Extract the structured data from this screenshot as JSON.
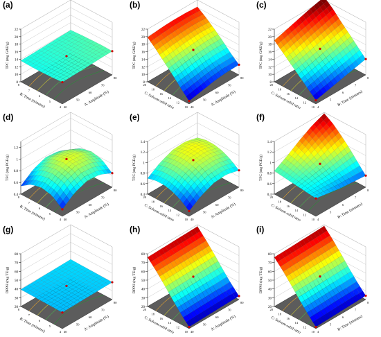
{
  "chart_data": [
    {
      "panel": "(a)",
      "type": "surface",
      "zlabel": "TPC (mg GAE/g)",
      "xlabel": "A: Amplitude (%)",
      "ylabel": "B: Time (minutes)",
      "xticks": [
        "40",
        "50",
        "60",
        "70",
        "80"
      ],
      "yticks": [
        "4",
        "5",
        "6",
        "7",
        "8"
      ],
      "zticks": [
        "8",
        "10",
        "12",
        "14",
        "16",
        "18",
        "20",
        "22"
      ],
      "zlim": [
        8,
        22
      ],
      "corners": {
        "front": 13.8,
        "right": 13.6,
        "back": 14.3,
        "left": 13.2
      },
      "surface_z": [
        [
          13.8,
          13.9,
          14.0,
          14.2,
          14.3
        ],
        [
          13.6,
          13.8,
          14.0,
          14.2,
          14.4
        ],
        [
          13.5,
          13.7,
          13.9,
          14.1,
          14.3
        ],
        [
          13.5,
          13.7,
          13.9,
          14.0,
          14.2
        ],
        [
          13.6,
          13.7,
          13.8,
          13.9,
          14.0
        ]
      ]
    },
    {
      "panel": "(b)",
      "type": "surface",
      "zlabel": "TPC (mg GAE/g)",
      "xlabel": "A: Amplitude (%)",
      "ylabel": "C: Solvent-solid ratio",
      "xticks": [
        "40",
        "50",
        "60",
        "70",
        "80"
      ],
      "yticks": [
        "10",
        "12",
        "14",
        "16",
        "18",
        "20"
      ],
      "zticks": [
        "8",
        "10",
        "12",
        "14",
        "16",
        "18",
        "20",
        "22"
      ],
      "zlim": [
        8,
        22
      ],
      "surface_z": [
        [
          8.8,
          9.5,
          10.2,
          10.6,
          10.7
        ],
        [
          11.0,
          11.6,
          12.2,
          12.6,
          12.6
        ],
        [
          13.4,
          14.0,
          14.5,
          14.8,
          14.8
        ],
        [
          15.6,
          16.2,
          16.6,
          16.9,
          16.8
        ],
        [
          17.8,
          18.3,
          18.6,
          18.8,
          18.6
        ],
        [
          19.8,
          20.2,
          20.4,
          20.4,
          20.2
        ]
      ]
    },
    {
      "panel": "(c)",
      "type": "surface",
      "zlabel": "TPC (mg GAE/g)",
      "xlabel": "B: Time (minutes)",
      "ylabel": "C: Solvent-solid ratio",
      "xticks": [
        "4",
        "5",
        "6",
        "7",
        "8"
      ],
      "yticks": [
        "10",
        "12",
        "14",
        "16",
        "18",
        "20"
      ],
      "zticks": [
        "8",
        "10",
        "12",
        "14",
        "16",
        "18",
        "20",
        "22"
      ],
      "zlim": [
        8,
        22
      ],
      "surface_z": [
        [
          9.0,
          9.8,
          10.6,
          11.4,
          12.2
        ],
        [
          11.0,
          11.9,
          12.8,
          13.6,
          14.4
        ],
        [
          13.0,
          13.9,
          14.8,
          15.7,
          16.6
        ],
        [
          15.0,
          15.9,
          16.9,
          17.8,
          18.7
        ],
        [
          17.0,
          18.0,
          19.0,
          20.0,
          21.0
        ],
        [
          19.0,
          20.0,
          21.0,
          22.0,
          22.8
        ]
      ]
    },
    {
      "panel": "(d)",
      "type": "surface",
      "zlabel": "TFC (mg PGE/g)",
      "xlabel": "A: Amplitude (%)",
      "ylabel": "B: Time (minutes)",
      "xticks": [
        "40",
        "50",
        "60",
        "70",
        "80"
      ],
      "yticks": [
        "4",
        "5",
        "6",
        "7",
        "8"
      ],
      "zticks": [
        "0.4",
        "0.6",
        "0.8",
        "1",
        "1.2"
      ],
      "zlim": [
        0.4,
        1.3
      ],
      "surface_z": [
        [
          0.52,
          0.68,
          0.76,
          0.74,
          0.64
        ],
        [
          0.66,
          0.82,
          0.9,
          0.88,
          0.78
        ],
        [
          0.7,
          0.86,
          0.94,
          0.92,
          0.82
        ],
        [
          0.66,
          0.82,
          0.9,
          0.88,
          0.78
        ],
        [
          0.54,
          0.7,
          0.78,
          0.76,
          0.66
        ]
      ]
    },
    {
      "panel": "(e)",
      "type": "surface",
      "zlabel": "TFC (mg PGE/g)",
      "xlabel": "A: Amplitude (%)",
      "ylabel": "C: Solvent-solid ratio",
      "xticks": [
        "40",
        "50",
        "60",
        "70",
        "80"
      ],
      "yticks": [
        "10",
        "12",
        "14",
        "16",
        "18",
        "20"
      ],
      "zticks": [
        "0.4",
        "0.6",
        "0.8",
        "1",
        "1.2",
        "1.4"
      ],
      "zlim": [
        0.4,
        1.4
      ],
      "surface_z": [
        [
          0.5,
          0.66,
          0.76,
          0.78,
          0.72
        ],
        [
          0.62,
          0.78,
          0.88,
          0.9,
          0.84
        ],
        [
          0.7,
          0.86,
          0.96,
          0.98,
          0.92
        ],
        [
          0.74,
          0.9,
          1.0,
          1.02,
          0.96
        ],
        [
          0.74,
          0.9,
          1.0,
          1.02,
          0.96
        ],
        [
          0.7,
          0.86,
          0.96,
          0.98,
          0.92
        ]
      ]
    },
    {
      "panel": "(f)",
      "type": "surface",
      "zlabel": "TFC (mg PGE/g)",
      "xlabel": "B: Time (minutes)",
      "ylabel": "C: Solvent-solid ratio",
      "xticks": [
        "4",
        "5",
        "6",
        "7",
        "8"
      ],
      "yticks": [
        "10",
        "12",
        "14",
        "16",
        "18",
        "20"
      ],
      "zticks": [
        "0.4",
        "0.6",
        "0.8",
        "1",
        "1.2",
        "1.4"
      ],
      "zlim": [
        0.4,
        1.4
      ],
      "surface_z": [
        [
          0.74,
          0.7,
          0.66,
          0.64,
          0.62
        ],
        [
          0.76,
          0.76,
          0.76,
          0.78,
          0.8
        ],
        [
          0.78,
          0.82,
          0.86,
          0.92,
          0.98
        ],
        [
          0.8,
          0.88,
          0.96,
          1.06,
          1.14
        ],
        [
          0.82,
          0.94,
          1.06,
          1.18,
          1.28
        ],
        [
          0.84,
          0.98,
          1.14,
          1.28,
          1.38
        ]
      ]
    },
    {
      "panel": "(g)",
      "type": "surface",
      "zlabel": "DPPH (mg TE/g)",
      "xlabel": "A: Amplitude (%)",
      "ylabel": "B: Time (minutes)",
      "xticks": [
        "40",
        "50",
        "60",
        "70",
        "80"
      ],
      "yticks": [
        "4",
        "5",
        "6",
        "7",
        "8"
      ],
      "zticks": [
        "20",
        "30",
        "40",
        "50",
        "60",
        "70",
        "80"
      ],
      "zlim": [
        20,
        80
      ],
      "surface_z": [
        [
          38.5,
          38.8,
          39.1,
          39.4,
          39.7
        ],
        [
          38.7,
          39.0,
          39.3,
          39.6,
          39.9
        ],
        [
          38.9,
          39.2,
          39.5,
          39.8,
          40.1
        ],
        [
          39.1,
          39.4,
          39.7,
          40.0,
          40.3
        ],
        [
          39.3,
          39.6,
          39.9,
          40.2,
          40.5
        ]
      ]
    },
    {
      "panel": "(h)",
      "type": "surface",
      "zlabel": "DPPH (mg TE/g)",
      "xlabel": "A: Amplitude (%)",
      "ylabel": "C: Solvent-solid ratio",
      "xticks": [
        "40",
        "50",
        "60",
        "70",
        "80"
      ],
      "yticks": [
        "10",
        "12",
        "14",
        "16",
        "18",
        "20"
      ],
      "zticks": [
        "20",
        "30",
        "40",
        "50",
        "60",
        "70",
        "80"
      ],
      "zlim": [
        20,
        80
      ],
      "surface_z": [
        [
          22,
          22.5,
          23,
          23.5,
          24
        ],
        [
          32,
          32.5,
          33,
          33.5,
          34
        ],
        [
          43,
          43.5,
          44,
          44.5,
          45
        ],
        [
          55,
          55.5,
          56,
          56.5,
          57
        ],
        [
          66,
          66.5,
          67,
          67.5,
          68
        ],
        [
          76,
          76.5,
          77,
          77.5,
          78
        ]
      ]
    },
    {
      "panel": "(i)",
      "type": "surface",
      "zlabel": "DPPH (mg TE/g)",
      "xlabel": "B: Time (minutes)",
      "ylabel": "C: Solvent-solid ratio",
      "xticks": [
        "4",
        "5",
        "6",
        "7",
        "8"
      ],
      "yticks": [
        "10",
        "12",
        "14",
        "16",
        "18",
        "20"
      ],
      "zticks": [
        "20",
        "30",
        "40",
        "50",
        "60",
        "70",
        "80"
      ],
      "zlim": [
        20,
        80
      ],
      "surface_z": [
        [
          22,
          22.6,
          23.2,
          23.8,
          24.4
        ],
        [
          32,
          32.6,
          33.2,
          33.8,
          34.4
        ],
        [
          43,
          43.6,
          44.2,
          44.8,
          45.4
        ],
        [
          55,
          55.6,
          56.2,
          56.8,
          57.4
        ],
        [
          66,
          66.6,
          67.2,
          67.8,
          68.4
        ],
        [
          76,
          76.6,
          77.2,
          77.8,
          78.6
        ]
      ]
    }
  ]
}
